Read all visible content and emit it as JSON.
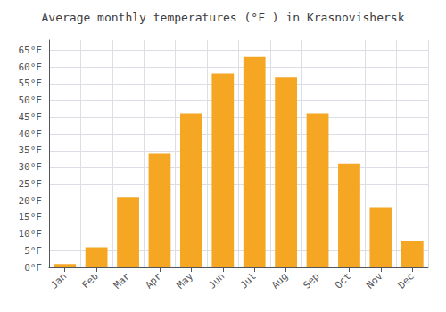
{
  "chart_data": {
    "type": "bar",
    "title": "Average monthly temperatures (°F ) in Krasnovishersk",
    "categories": [
      "Jan",
      "Feb",
      "Mar",
      "Apr",
      "May",
      "Jun",
      "Jul",
      "Aug",
      "Sep",
      "Oct",
      "Nov",
      "Dec"
    ],
    "values": [
      1,
      6,
      21,
      34,
      46,
      58,
      63,
      57,
      46,
      31,
      18,
      8
    ],
    "color": "#F5A623",
    "ylim": [
      0,
      68
    ],
    "yticks": [
      {
        "value": 0,
        "label": "0°F"
      },
      {
        "value": 5,
        "label": "5°F"
      },
      {
        "value": 10,
        "label": "10°F"
      },
      {
        "value": 15,
        "label": "15°F"
      },
      {
        "value": 20,
        "label": "20°F"
      },
      {
        "value": 25,
        "label": "25°F"
      },
      {
        "value": 30,
        "label": "30°F"
      },
      {
        "value": 35,
        "label": "35°F"
      },
      {
        "value": 40,
        "label": "40°F"
      },
      {
        "value": 45,
        "label": "45°F"
      },
      {
        "value": 50,
        "label": "50°F"
      },
      {
        "value": 55,
        "label": "55°F"
      },
      {
        "value": 60,
        "label": "60°F"
      },
      {
        "value": 65,
        "label": "65°F"
      }
    ],
    "grid": true
  }
}
